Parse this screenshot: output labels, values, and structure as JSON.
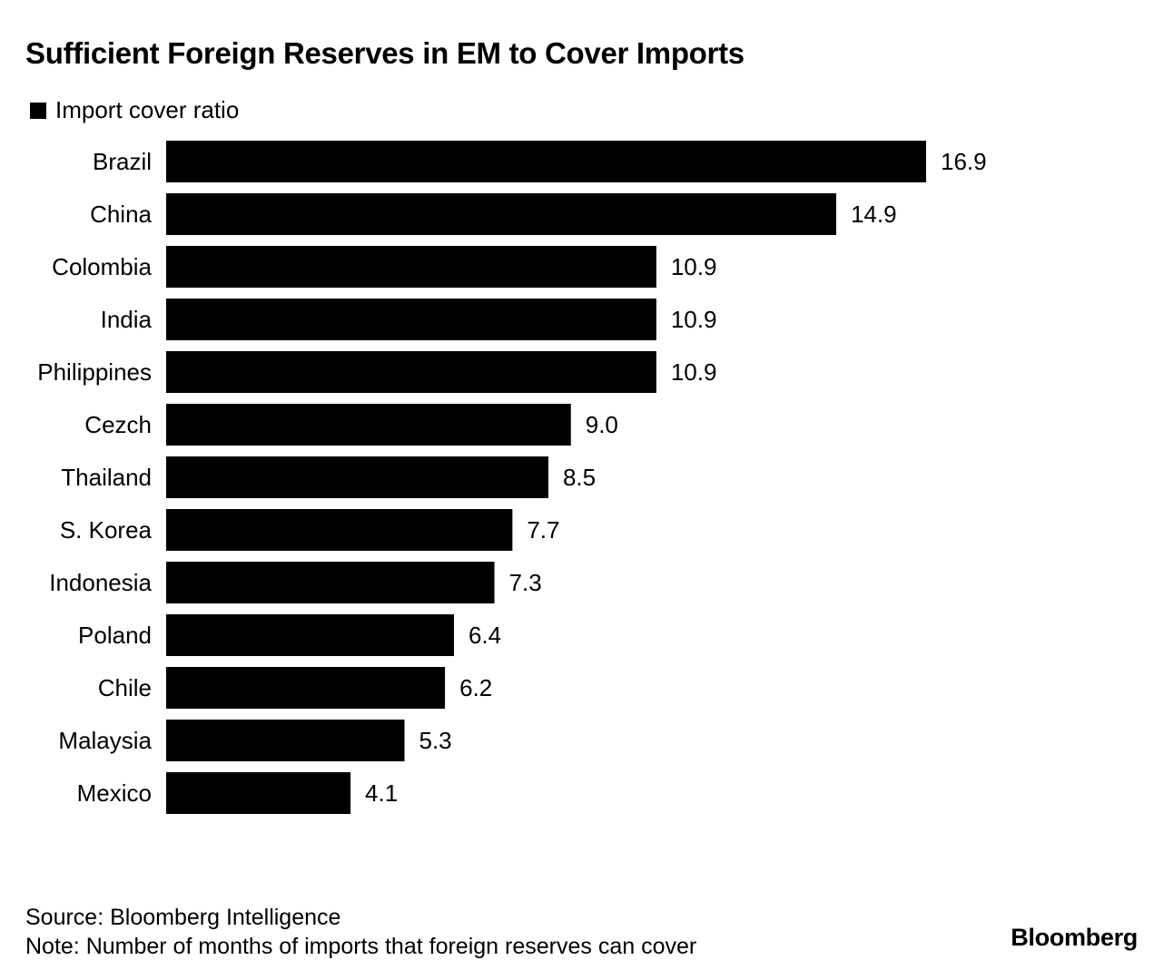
{
  "title": "Sufficient Foreign Reserves in EM to Cover Imports",
  "source": "Source: Bloomberg Intelligence",
  "note": "Note: Number of months of imports that foreign reserves can cover",
  "brand": "Bloomberg",
  "chart_data": {
    "type": "bar",
    "orientation": "horizontal",
    "title": "Sufficient Foreign Reserves in EM to Cover Imports",
    "legend": {
      "position": "top-left",
      "entries": [
        "Import cover ratio"
      ]
    },
    "grid": false,
    "xlim": [
      0,
      16.9
    ],
    "categories": [
      "Brazil",
      "China",
      "Colombia",
      "India",
      "Philippines",
      "Cezch",
      "Thailand",
      "S. Korea",
      "Indonesia",
      "Poland",
      "Chile",
      "Malaysia",
      "Mexico"
    ],
    "series": [
      {
        "name": "Import cover ratio",
        "color": "#000000",
        "values": [
          16.9,
          14.9,
          10.9,
          10.9,
          10.9,
          9.0,
          8.5,
          7.7,
          7.3,
          6.4,
          6.2,
          5.3,
          4.1
        ],
        "labels": [
          "16.9",
          "14.9",
          "10.9",
          "10.9",
          "10.9",
          "9.0",
          "8.5",
          "7.7",
          "7.3",
          "6.4",
          "6.2",
          "5.3",
          "4.1"
        ]
      }
    ]
  }
}
